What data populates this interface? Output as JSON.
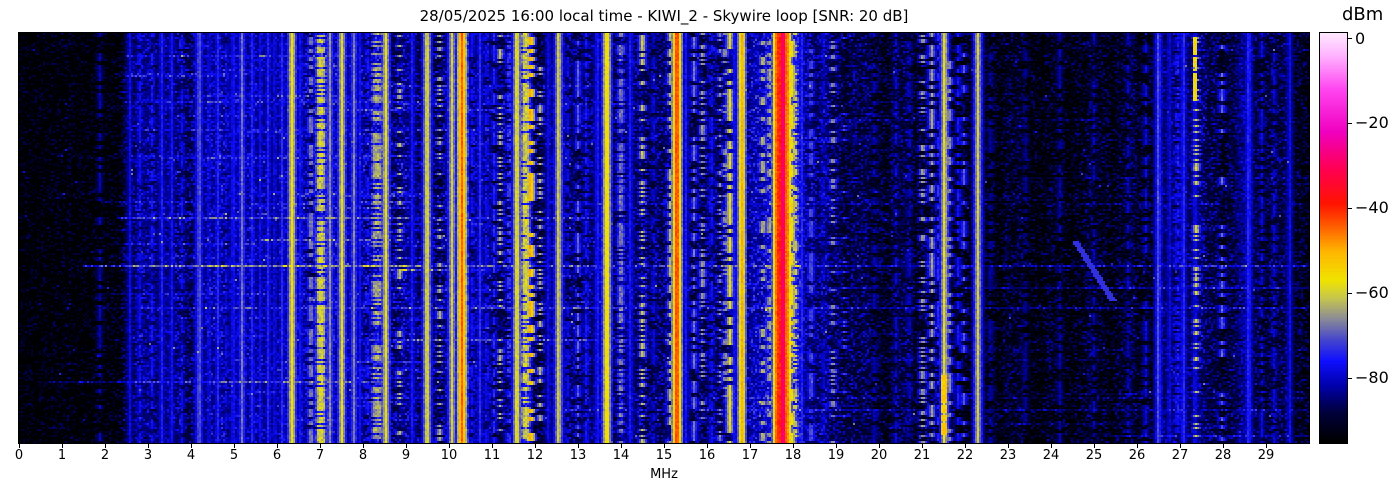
{
  "figure": {
    "title": "28/05/2025 16:00 local time - KIWI_2 - Skywire loop [SNR: 20 dB]",
    "x_axis_label": "MHz",
    "colorbar_label": "dBm",
    "background_color": "#ffffff",
    "axis_color": "#000000"
  },
  "chart_data": {
    "type": "heatmap",
    "subtype": "radio-spectrogram-waterfall",
    "title": "28/05/2025 16:00 local time - KIWI_2 - Skywire loop [SNR: 20 dB]",
    "xlabel": "MHz",
    "ylabel": "",
    "x_range": [
      0,
      30
    ],
    "x_ticks": [
      0,
      1,
      2,
      3,
      4,
      5,
      6,
      7,
      8,
      9,
      10,
      11,
      12,
      13,
      14,
      15,
      16,
      17,
      18,
      19,
      20,
      21,
      22,
      23,
      24,
      25,
      26,
      27,
      28,
      29
    ],
    "value_unit": "dBm",
    "value_range": [
      -95.3,
      1.3
    ],
    "colorbar_ticks": [
      {
        "v": 0,
        "label": "0"
      },
      {
        "v": -20,
        "label": "−20"
      },
      {
        "v": -40,
        "label": "−40"
      },
      {
        "v": -60,
        "label": "−60"
      },
      {
        "v": -80,
        "label": "−80"
      }
    ],
    "colormap_stops": [
      [
        -95,
        "#000000"
      ],
      [
        -88,
        "#00003c"
      ],
      [
        -82,
        "#0000a8"
      ],
      [
        -76,
        "#0f0fff"
      ],
      [
        -71,
        "#4646cd"
      ],
      [
        -66,
        "#8c8c96"
      ],
      [
        -61,
        "#c8c84b"
      ],
      [
        -57,
        "#f0e400"
      ],
      [
        -50,
        "#ffb400"
      ],
      [
        -44,
        "#ff5a00"
      ],
      [
        -39,
        "#ff1400"
      ],
      [
        -31,
        "#ff0050"
      ],
      [
        -22,
        "#f000c0"
      ],
      [
        -12,
        "#ff46f0"
      ],
      [
        -4,
        "#ffb4ff"
      ],
      [
        1,
        "#ffe6ff"
      ]
    ],
    "seed": 1234,
    "noise_floor_dbm_by_mhz": [
      [
        0,
        -94
      ],
      [
        2.2,
        -93
      ],
      [
        2.5,
        -87
      ],
      [
        3,
        -83.5
      ],
      [
        4,
        -83
      ],
      [
        5,
        -82.5
      ],
      [
        6,
        -82
      ],
      [
        7,
        -82
      ],
      [
        8,
        -83
      ],
      [
        9,
        -84
      ],
      [
        10,
        -85
      ],
      [
        11,
        -84.5
      ],
      [
        12,
        -85
      ],
      [
        13,
        -84
      ],
      [
        14,
        -84.5
      ],
      [
        15,
        -84
      ],
      [
        16,
        -84.5
      ],
      [
        16.9,
        -83
      ],
      [
        17.4,
        -80
      ],
      [
        17.8,
        -78
      ],
      [
        18.1,
        -80
      ],
      [
        18.4,
        -83
      ],
      [
        19,
        -85.5
      ],
      [
        20,
        -87
      ],
      [
        21,
        -88
      ],
      [
        22,
        -89.5
      ],
      [
        23,
        -90.5
      ],
      [
        25,
        -90.5
      ],
      [
        26,
        -88.5
      ],
      [
        26.8,
        -86
      ],
      [
        27.3,
        -85.5
      ],
      [
        28,
        -86
      ],
      [
        28.8,
        -86.5
      ],
      [
        29.4,
        -88
      ],
      [
        30,
        -88
      ]
    ],
    "carriers_f_w_level_style_duty": [
      [
        1.88,
        0,
        -81,
        "d",
        0.5
      ],
      [
        2.58,
        0,
        -78,
        "s",
        0
      ],
      [
        2.8,
        0,
        -76,
        "d",
        0.7
      ],
      [
        2.95,
        0.5,
        -82,
        "b",
        0.8
      ],
      [
        3.1,
        0,
        -76,
        "d",
        0.6
      ],
      [
        3.32,
        0,
        -75,
        "s",
        0
      ],
      [
        3.42,
        0.4,
        -82,
        "b",
        0.8
      ],
      [
        3.55,
        0,
        -76,
        "s",
        0
      ],
      [
        3.8,
        0,
        -77,
        "d",
        0.6
      ],
      [
        4.19,
        0,
        -68,
        "s",
        0
      ],
      [
        4.42,
        0,
        -76,
        "s",
        0
      ],
      [
        4.62,
        0,
        -74,
        "s",
        0
      ],
      [
        4.83,
        0,
        -77,
        "d",
        0.6
      ],
      [
        4.98,
        0,
        -74,
        "s",
        0
      ],
      [
        5.19,
        0,
        -68,
        "s",
        0
      ],
      [
        5.43,
        0,
        -74,
        "s",
        0
      ],
      [
        5.62,
        0,
        -76,
        "s",
        0
      ],
      [
        5.8,
        0,
        -74,
        "s",
        0
      ],
      [
        5.95,
        0,
        -76,
        "s",
        0
      ],
      [
        6.12,
        0,
        -74,
        "s",
        0
      ],
      [
        6.35,
        0,
        -56,
        "s",
        0
      ],
      [
        6.55,
        0,
        -75,
        "s",
        0
      ],
      [
        6.79,
        0,
        -64,
        "d",
        0.6
      ],
      [
        7.02,
        0.14,
        -57,
        "b",
        0.7
      ],
      [
        7.23,
        0,
        -66,
        "s",
        0
      ],
      [
        7.51,
        0,
        -58,
        "s",
        0
      ],
      [
        7.79,
        0,
        -67,
        "s",
        0
      ],
      [
        7.92,
        0,
        -76,
        "s",
        0
      ],
      [
        8.1,
        0,
        -74,
        "d",
        0.5
      ],
      [
        8.33,
        0.2,
        -61,
        "b",
        0.55
      ],
      [
        8.53,
        0,
        -58,
        "s",
        0
      ],
      [
        8.85,
        0,
        -61,
        "o",
        0.25
      ],
      [
        9.15,
        0,
        -75,
        "s",
        0
      ],
      [
        9.49,
        0,
        -57,
        "s",
        0
      ],
      [
        9.78,
        0,
        -62,
        "o",
        0.3
      ],
      [
        10.07,
        0,
        -60,
        "s",
        0
      ],
      [
        10.3,
        0.06,
        -44,
        "s",
        0
      ],
      [
        10.36,
        0,
        -56,
        "d",
        0.5
      ],
      [
        10.55,
        0,
        -75,
        "d",
        0.6
      ],
      [
        10.72,
        0,
        -74,
        "s",
        0
      ],
      [
        10.88,
        0,
        -75,
        "d",
        0.6
      ],
      [
        11.05,
        0,
        -74,
        "d",
        0.6
      ],
      [
        11.19,
        0,
        -62,
        "o",
        0.3
      ],
      [
        11.4,
        0.1,
        -70,
        "b",
        0.5
      ],
      [
        11.58,
        0,
        -56,
        "s",
        0
      ],
      [
        11.78,
        0.12,
        -57,
        "b",
        0.75
      ],
      [
        11.9,
        0,
        -48,
        "d",
        0.45
      ],
      [
        12.12,
        0,
        -62,
        "o",
        0.3
      ],
      [
        12.32,
        0,
        -76,
        "s",
        0
      ],
      [
        12.55,
        0,
        -59,
        "s",
        0
      ],
      [
        12.75,
        0,
        -76,
        "d",
        0.6
      ],
      [
        13.0,
        0,
        -70,
        "d",
        0.4
      ],
      [
        13.2,
        0,
        -75,
        "d",
        0.6
      ],
      [
        13.45,
        0,
        -74,
        "s",
        0
      ],
      [
        13.67,
        0.07,
        -55,
        "s",
        0
      ],
      [
        14.0,
        0.1,
        -65,
        "b",
        0.6
      ],
      [
        14.22,
        0,
        -75,
        "s",
        0
      ],
      [
        14.5,
        0,
        -60,
        "o",
        0.35
      ],
      [
        14.75,
        0,
        -77,
        "d",
        0.6
      ],
      [
        15.15,
        0,
        -62,
        "d",
        0.4
      ],
      [
        15.3,
        0.07,
        -42,
        "s",
        0
      ],
      [
        15.5,
        0,
        -75,
        "s",
        0
      ],
      [
        15.7,
        0,
        -68,
        "d",
        0.5
      ],
      [
        15.9,
        0,
        -63,
        "o",
        0.3
      ],
      [
        16.1,
        0,
        -75,
        "d",
        0.6
      ],
      [
        16.3,
        0,
        -66,
        "o",
        0.2
      ],
      [
        16.42,
        0,
        -63,
        "o",
        0.25
      ],
      [
        16.53,
        0,
        -58,
        "d",
        0.7
      ],
      [
        16.65,
        0,
        -74,
        "s",
        0
      ],
      [
        16.81,
        0.04,
        -50,
        "s",
        0
      ],
      [
        17.3,
        0,
        -60,
        "d",
        0.35
      ],
      [
        17.45,
        0,
        -62,
        "d",
        0.3
      ],
      [
        17.62,
        0,
        -55,
        "d",
        0.6
      ],
      [
        17.7,
        0.18,
        -40,
        "s",
        0
      ],
      [
        17.77,
        0.05,
        -26,
        "s",
        0
      ],
      [
        17.85,
        0.08,
        -44,
        "s",
        0
      ],
      [
        17.98,
        0,
        -55,
        "d",
        0.6
      ],
      [
        18.05,
        0,
        -58,
        "o",
        0.4
      ],
      [
        18.2,
        0,
        -74,
        "s",
        0
      ],
      [
        18.42,
        0,
        -68,
        "d",
        0.5
      ],
      [
        18.7,
        0,
        -77,
        "d",
        0.6
      ],
      [
        18.93,
        0,
        -63,
        "o",
        0.25
      ],
      [
        19.2,
        0,
        -70,
        "o",
        0.12
      ],
      [
        19.9,
        0,
        -79,
        "d",
        0.5
      ],
      [
        20.4,
        0,
        -79,
        "d",
        0.5
      ],
      [
        20.7,
        0,
        -78,
        "d",
        0.5
      ],
      [
        21.02,
        0,
        -62,
        "o",
        0.3
      ],
      [
        21.23,
        0,
        -64,
        "d",
        0.55
      ],
      [
        21.37,
        0,
        -74,
        "d",
        0.5
      ],
      [
        21.52,
        0,
        -58,
        "s",
        0
      ],
      [
        21.63,
        0,
        -63,
        "d",
        0.4
      ],
      [
        21.85,
        0,
        -75,
        "d",
        0.5
      ],
      [
        21.97,
        0,
        -70,
        "d",
        0.4
      ],
      [
        22.3,
        0,
        -60,
        "s",
        0
      ],
      [
        22.6,
        0,
        -80,
        "d",
        0.5
      ],
      [
        23.4,
        0,
        -81,
        "d",
        0.5
      ],
      [
        24.2,
        0,
        -81,
        "d",
        0.5
      ],
      [
        25.0,
        0,
        -81,
        "d",
        0.5
      ],
      [
        25.8,
        0,
        -80,
        "d",
        0.5
      ],
      [
        26.2,
        0,
        -78,
        "d",
        0.6
      ],
      [
        26.5,
        0,
        -70,
        "s",
        0
      ],
      [
        26.75,
        0,
        -77,
        "s",
        0
      ],
      [
        26.95,
        0.12,
        -74,
        "b",
        0.6
      ],
      [
        27.08,
        0,
        -73,
        "s",
        0
      ],
      [
        27.35,
        0,
        -75,
        "s",
        0
      ],
      [
        27.38,
        0,
        -59,
        "o",
        0.3
      ],
      [
        27.98,
        0,
        -69,
        "d",
        0.35
      ],
      [
        28.45,
        0.3,
        -81,
        "b",
        0.8
      ],
      [
        28.6,
        0,
        -72,
        "s",
        0
      ],
      [
        28.9,
        0,
        -78,
        "d",
        0.5
      ],
      [
        29.2,
        0,
        -78,
        "d",
        0.5
      ],
      [
        29.55,
        0,
        -77,
        "s",
        0
      ]
    ],
    "band_halo": {
      "center_mhz": 17.78,
      "sigma_mhz": 0.33,
      "boost_db": 8
    },
    "blocks_f0_f1_y0_y1_level": [
      [
        21.46,
        21.6,
        0.835,
        0.985,
        -53
      ],
      [
        27.3,
        27.38,
        0.005,
        0.165,
        -56
      ]
    ],
    "diagonal_sweep": {
      "f0": 24.55,
      "y0": 0.505,
      "f1": 25.45,
      "y1": 0.655,
      "level": -73
    },
    "major_streaks": [
      [
        0.055,
        [
          [
            2.5,
            8,
            6
          ]
        ]
      ],
      [
        0.168,
        [
          [
            2.4,
            9.5,
            7
          ]
        ]
      ],
      [
        0.237,
        [
          [
            2.4,
            12,
            6
          ]
        ]
      ],
      [
        0.3,
        [
          [
            2.4,
            10.5,
            6
          ]
        ]
      ],
      [
        0.415,
        [
          [
            13,
            30,
            4
          ]
        ]
      ],
      [
        0.451,
        [
          [
            2.3,
            9,
            12
          ],
          [
            9,
            13.5,
            9
          ]
        ]
      ],
      [
        0.571,
        [
          [
            1.5,
            9.5,
            15
          ],
          [
            9.5,
            13,
            12
          ],
          [
            13,
            27,
            9
          ],
          [
            27,
            28.8,
            12
          ],
          [
            28.8,
            30,
            9
          ]
        ]
      ],
      [
        0.622,
        [
          [
            14,
            30,
            4
          ]
        ]
      ],
      [
        0.635,
        [
          [
            2,
            9,
            6
          ]
        ]
      ],
      [
        0.671,
        [
          [
            1.8,
            30,
            7
          ]
        ]
      ],
      [
        0.805,
        [
          [
            7.4,
            10.6,
            9
          ]
        ]
      ],
      [
        0.851,
        [
          [
            0.4,
            8.5,
            10
          ]
        ]
      ],
      [
        0.89,
        [
          [
            12,
            30,
            4
          ]
        ]
      ],
      [
        0.92,
        [
          [
            12,
            30,
            7
          ]
        ]
      ],
      [
        0.985,
        [
          [
            25.4,
            30,
            8
          ]
        ]
      ]
    ],
    "minor_streak_sets": [
      [
        95,
        1.8,
        7.2,
        0.8,
        6.5,
        2,
        4.5,
        0.02,
        0.95
      ],
      [
        20,
        17.5,
        9.5,
        1.0,
        9.0,
        1.5,
        3.0,
        0.02,
        0.95
      ]
    ]
  }
}
